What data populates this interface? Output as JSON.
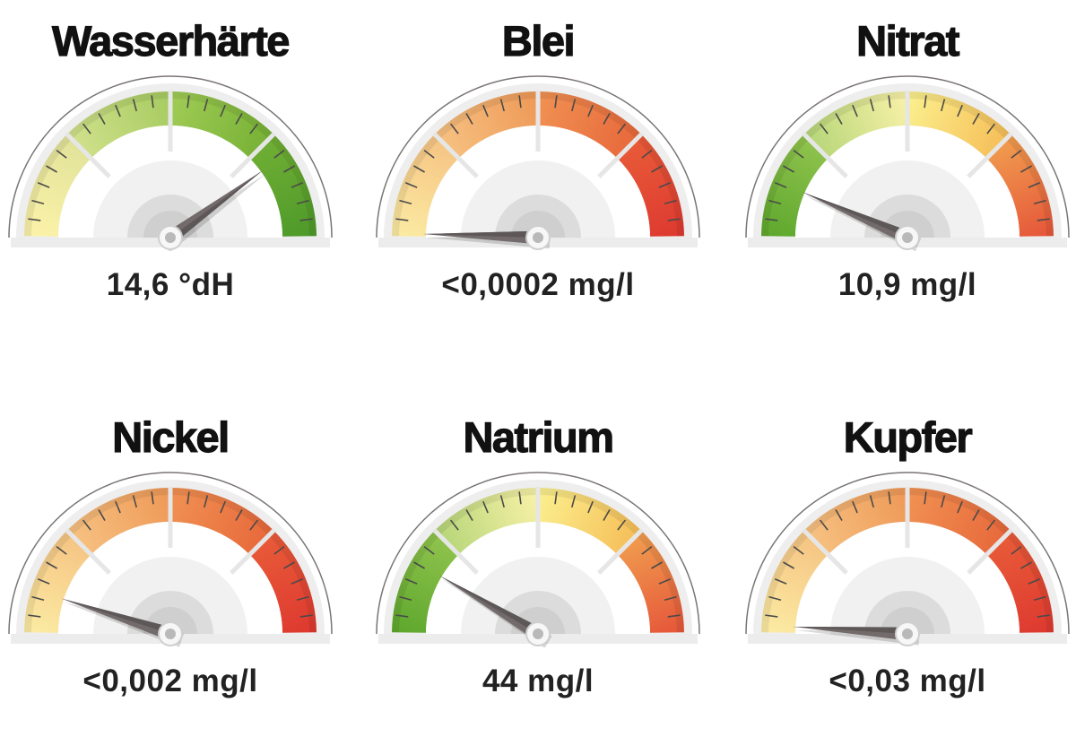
{
  "gauges": [
    {
      "title": "Wasserhärte",
      "value": "14,6 °dH",
      "needle_fraction": 0.8,
      "segments": [
        [
          "#fbf2a8",
          "#e2e39a"
        ],
        [
          "#cfe08a",
          "#a8cc62"
        ],
        [
          "#9fcb55",
          "#78b236"
        ],
        [
          "#6fae34",
          "#4f9a2a"
        ]
      ]
    },
    {
      "title": "Blei",
      "value": "<0,0002 mg/l",
      "needle_fraction": 0.01,
      "segments": [
        [
          "#fbeaa2",
          "#f6c584"
        ],
        [
          "#f6c080",
          "#ef9a58"
        ],
        [
          "#f09052",
          "#e86a3c"
        ],
        [
          "#e85a38",
          "#de3a30"
        ]
      ]
    },
    {
      "title": "Nitrat",
      "value": "10,9 mg/l",
      "needle_fraction": 0.13,
      "segments": [
        [
          "#5fa82e",
          "#8ec24c"
        ],
        [
          "#b9d77a",
          "#f6f0a6"
        ],
        [
          "#fbee8c",
          "#f6c05a"
        ],
        [
          "#f09a4e",
          "#e6583a"
        ]
      ]
    },
    {
      "title": "Nickel",
      "value": "<0,002 mg/l",
      "needle_fraction": 0.1,
      "segments": [
        [
          "#fbeaa2",
          "#f6c584"
        ],
        [
          "#f6c080",
          "#ef9a58"
        ],
        [
          "#f09052",
          "#e86a3c"
        ],
        [
          "#e85a38",
          "#de3a30"
        ]
      ]
    },
    {
      "title": "Natrium",
      "value": "44 mg/l",
      "needle_fraction": 0.17,
      "segments": [
        [
          "#5fa82e",
          "#8ec24c"
        ],
        [
          "#b9d77a",
          "#f6f0a6"
        ],
        [
          "#fbee8c",
          "#f6c05a"
        ],
        [
          "#f09a4e",
          "#e6583a"
        ]
      ]
    },
    {
      "title": "Kupfer",
      "value": "<0,03 mg/l",
      "needle_fraction": 0.02,
      "segments": [
        [
          "#fbeaa2",
          "#f6c584"
        ],
        [
          "#f6c080",
          "#ef9a58"
        ],
        [
          "#f09052",
          "#e86a3c"
        ],
        [
          "#e85a38",
          "#de3a30"
        ]
      ]
    }
  ]
}
